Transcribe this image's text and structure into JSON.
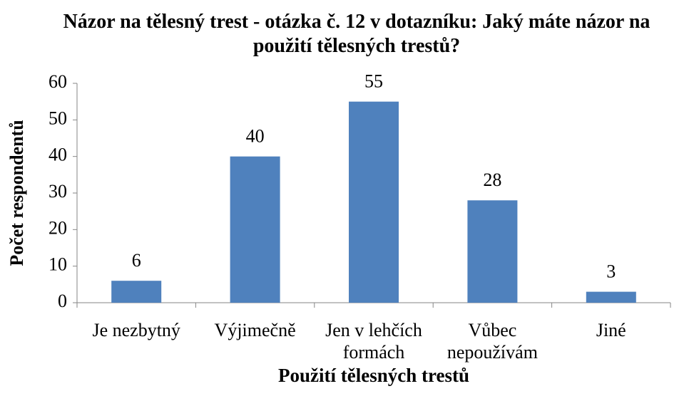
{
  "chart_data": {
    "type": "bar",
    "title": "Názor na tělesný trest - otázka č. 12 v dotazníku: Jaký máte názor na použití tělesných trestů?",
    "categories": [
      "Je nezbytný",
      "Výjimečně",
      "Jen v lehčích formách",
      "Vůbec nepoužívám",
      "Jiné"
    ],
    "values": [
      6,
      40,
      55,
      28,
      3
    ],
    "color": "#4f81bd",
    "ylim": [
      0,
      60
    ],
    "yticks": [
      0,
      10,
      20,
      30,
      40,
      50,
      60
    ],
    "x_label": "Použití tělesných trestů",
    "y_label": "Počet respondentů"
  }
}
